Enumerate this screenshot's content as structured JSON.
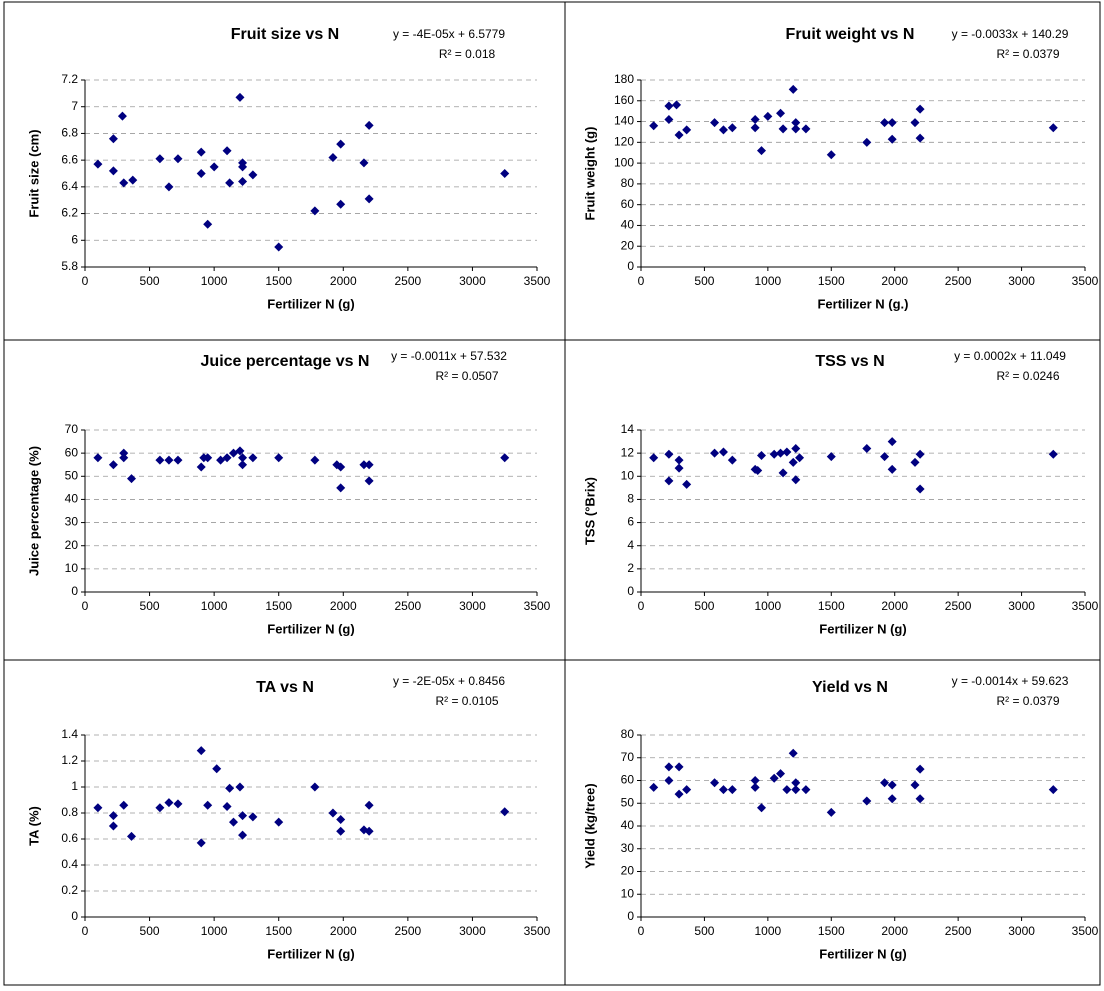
{
  "chart_data": [
    {
      "type": "scatter",
      "title": "Fruit size vs N",
      "equation": "y = -4E-05x + 6.5779",
      "r2": "R² = 0.018",
      "x_label": "Fertilizer N (g)",
      "y_label": "Fruit size (cm)",
      "color": "#000080",
      "grid": true,
      "xlim": [
        0,
        3500
      ],
      "xticks": [
        0,
        500,
        1000,
        1500,
        2000,
        2500,
        3000,
        3500
      ],
      "ylim": [
        5.8,
        7.2
      ],
      "yticks": [
        5.8,
        6,
        6.2,
        6.4,
        6.6,
        6.8,
        7,
        7.2
      ],
      "x": [
        100,
        220,
        220,
        290,
        300,
        370,
        580,
        650,
        720,
        900,
        900,
        950,
        1000,
        1100,
        1120,
        1200,
        1220,
        1220,
        1220,
        1300,
        1500,
        1780,
        1920,
        1980,
        1980,
        2160,
        2200,
        2200,
        3250
      ],
      "values": [
        6.57,
        6.76,
        6.52,
        6.93,
        6.43,
        6.45,
        6.61,
        6.4,
        6.61,
        6.66,
        6.5,
        6.12,
        6.55,
        6.67,
        6.43,
        7.07,
        6.58,
        6.55,
        6.44,
        6.49,
        5.95,
        6.22,
        6.62,
        6.72,
        6.27,
        6.58,
        6.86,
        6.31,
        6.5
      ]
    },
    {
      "type": "scatter",
      "title": "Fruit weight vs N",
      "equation": "y = -0.0033x + 140.29",
      "r2": "R² = 0.0379",
      "x_label": "Fertilizer N (g.)",
      "y_label": "Fruit weight (g)",
      "color": "#000080",
      "grid": true,
      "xlim": [
        0,
        3500
      ],
      "xticks": [
        0,
        500,
        1000,
        1500,
        2000,
        2500,
        3000,
        3500
      ],
      "ylim": [
        0,
        180
      ],
      "yticks": [
        0,
        20,
        40,
        60,
        80,
        100,
        120,
        140,
        160,
        180
      ],
      "x": [
        100,
        220,
        220,
        280,
        300,
        360,
        580,
        650,
        720,
        900,
        900,
        950,
        1000,
        1100,
        1120,
        1200,
        1220,
        1220,
        1300,
        1500,
        1780,
        1920,
        1980,
        1980,
        2160,
        2200,
        2200,
        3250
      ],
      "values": [
        136,
        155,
        142,
        156,
        127,
        132,
        139,
        132,
        134,
        142,
        134,
        112,
        145,
        148,
        133,
        171,
        139,
        133,
        133,
        108,
        120,
        139,
        139,
        123,
        139,
        152,
        124,
        134
      ]
    },
    {
      "type": "scatter",
      "title": "Juice percentage vs N",
      "equation": "y = -0.0011x + 57.532",
      "r2": "R² = 0.0507",
      "x_label": "Fertilizer N (g)",
      "y_label": "Juice percentage (%)",
      "color": "#000080",
      "grid": true,
      "xlim": [
        0,
        3500
      ],
      "xticks": [
        0,
        500,
        1000,
        1500,
        2000,
        2500,
        3000,
        3500
      ],
      "ylim": [
        0,
        70
      ],
      "yticks": [
        0,
        10,
        20,
        30,
        40,
        50,
        60,
        70
      ],
      "x": [
        100,
        220,
        300,
        300,
        360,
        580,
        650,
        720,
        900,
        920,
        950,
        1050,
        1100,
        1150,
        1200,
        1220,
        1220,
        1300,
        1500,
        1780,
        1950,
        1980,
        1980,
        2160,
        2200,
        2200,
        3250
      ],
      "values": [
        58,
        55,
        60,
        58,
        49,
        57,
        57,
        57,
        54,
        58,
        58,
        57,
        58,
        60,
        61,
        58,
        55,
        58,
        58,
        57,
        55,
        54,
        45,
        55,
        55,
        48,
        58
      ]
    },
    {
      "type": "scatter",
      "title": "TSS vs N",
      "equation": "y = 0.0002x + 11.049",
      "r2": "R² = 0.0246",
      "x_label": "Fertilizer N (g)",
      "y_label": "TSS (°Brix)",
      "color": "#000080",
      "grid": true,
      "xlim": [
        0,
        3500
      ],
      "xticks": [
        0,
        500,
        1000,
        1500,
        2000,
        2500,
        3000,
        3500
      ],
      "ylim": [
        0,
        14
      ],
      "yticks": [
        0,
        2,
        4,
        6,
        8,
        10,
        12,
        14
      ],
      "x": [
        100,
        220,
        220,
        300,
        300,
        360,
        580,
        650,
        720,
        900,
        920,
        950,
        1050,
        1100,
        1120,
        1150,
        1200,
        1220,
        1220,
        1250,
        1500,
        1780,
        1920,
        1980,
        1980,
        2160,
        2200,
        2200,
        3250
      ],
      "values": [
        11.6,
        11.9,
        9.6,
        11.4,
        10.7,
        9.3,
        12,
        12.1,
        11.4,
        10.6,
        10.5,
        11.8,
        11.9,
        12,
        10.3,
        12.1,
        11.2,
        12.4,
        9.7,
        11.6,
        11.7,
        12.4,
        11.7,
        13,
        10.6,
        11.2,
        11.9,
        8.9,
        11.9
      ]
    },
    {
      "type": "scatter",
      "title": "TA vs N",
      "equation": "y = -2E-05x + 0.8456",
      "r2": "R² = 0.0105",
      "x_label": "Fertilizer N (g)",
      "y_label": "TA (%)",
      "color": "#000080",
      "grid": true,
      "xlim": [
        0,
        3500
      ],
      "xticks": [
        0,
        500,
        1000,
        1500,
        2000,
        2500,
        3000,
        3500
      ],
      "ylim": [
        0,
        1.4
      ],
      "yticks": [
        0,
        0.2,
        0.4,
        0.6,
        0.8,
        1,
        1.2,
        1.4
      ],
      "x": [
        100,
        220,
        220,
        300,
        360,
        580,
        650,
        720,
        900,
        900,
        950,
        1020,
        1100,
        1120,
        1150,
        1200,
        1220,
        1220,
        1300,
        1500,
        1780,
        1920,
        1980,
        1980,
        2160,
        2200,
        2200,
        3250
      ],
      "values": [
        0.84,
        0.78,
        0.7,
        0.86,
        0.62,
        0.84,
        0.88,
        0.87,
        1.28,
        0.57,
        0.86,
        1.14,
        0.85,
        0.99,
        0.73,
        1.0,
        0.78,
        0.63,
        0.77,
        0.73,
        1.0,
        0.8,
        0.75,
        0.66,
        0.67,
        0.86,
        0.66,
        0.81
      ]
    },
    {
      "type": "scatter",
      "title": "Yield vs N",
      "equation": "y = -0.0014x + 59.623",
      "r2": "R² = 0.0379",
      "x_label": "Fertilizer N (g)",
      "y_label": "Yield (kg/tree)",
      "color": "#000080",
      "grid": true,
      "xlim": [
        0,
        3500
      ],
      "xticks": [
        0,
        500,
        1000,
        1500,
        2000,
        2500,
        3000,
        3500
      ],
      "ylim": [
        0,
        80
      ],
      "yticks": [
        0,
        10,
        20,
        30,
        40,
        50,
        60,
        70,
        80
      ],
      "x": [
        100,
        220,
        220,
        300,
        300,
        360,
        580,
        650,
        720,
        900,
        900,
        950,
        1050,
        1100,
        1150,
        1200,
        1220,
        1220,
        1300,
        1500,
        1780,
        1920,
        1980,
        1980,
        2160,
        2200,
        2200,
        3250
      ],
      "values": [
        57,
        66,
        60,
        66,
        54,
        56,
        59,
        56,
        56,
        60,
        57,
        48,
        61,
        63,
        56,
        72,
        59,
        56,
        56,
        46,
        51,
        59,
        58,
        52,
        58,
        65,
        52,
        56
      ]
    }
  ]
}
